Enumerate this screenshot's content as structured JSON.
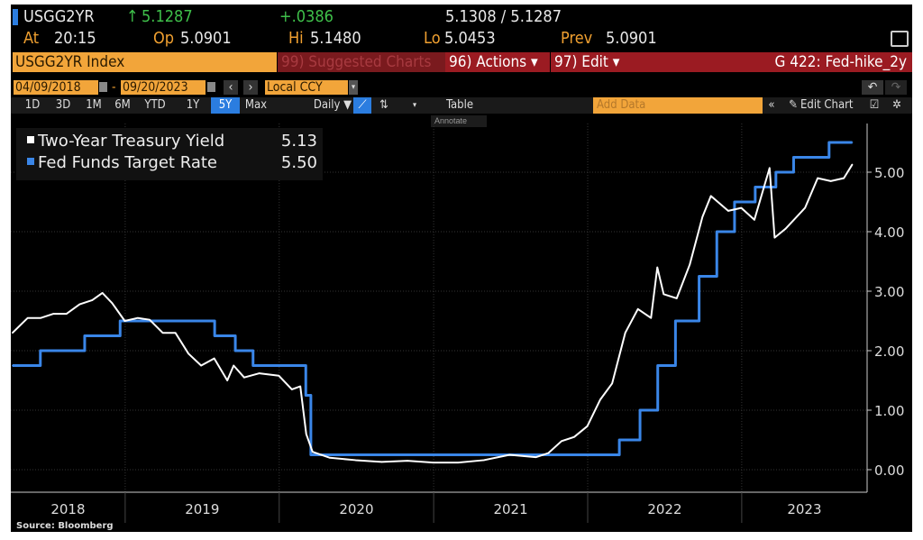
{
  "header": {
    "ticker": "USGG2YR",
    "arrow": "↑",
    "last": "5.1287",
    "change": "+.0386",
    "bid_ask": "5.1308 / 5.1287",
    "at_label": "At",
    "at_value": "20:15",
    "op_label": "Op",
    "op_value": "5.0901",
    "hi_label": "Hi",
    "hi_value": "5.1480",
    "lo_label": "Lo",
    "lo_value": "5.0453",
    "prev_label": "Prev",
    "prev_value": "5.0901"
  },
  "toolbar": {
    "security": "USGG2YR Index",
    "suggested": "99) Suggested Charts",
    "actions": "96) Actions ▾",
    "edit": "97) Edit ▾",
    "chart_name": "G 422: Fed-hike_2y",
    "start_date": "04/09/2018",
    "end_date": "09/20/2023",
    "currency": "Local CCY",
    "periods": [
      "1D",
      "3D",
      "1M",
      "6M",
      "YTD",
      "1Y",
      "5Y",
      "Max"
    ],
    "active_period": "5Y",
    "frequency": "Daily ▼",
    "table": "Table",
    "add_data_placeholder": "Add Data",
    "edit_chart": "Edit Chart",
    "annotate": "Annotate",
    "collapse": "«"
  },
  "source": "Source: Bloomberg",
  "colors": {
    "yield": "#ffffff",
    "fed": "#3a86e8",
    "orange": "#f2a53a",
    "red": "#9b1b22",
    "active": "#2b7de0"
  },
  "chart_data": {
    "type": "line",
    "xlabel": "",
    "ylabel": "",
    "ylim": [
      -0.3,
      5.7
    ],
    "xlim": [
      "2018-04-09",
      "2023-10-20"
    ],
    "y_ticks": [
      "0.00",
      "1.00",
      "2.00",
      "3.00",
      "4.00",
      "5.00"
    ],
    "x_ticks": [
      "2018",
      "2019",
      "2020",
      "2021",
      "2022",
      "2023"
    ],
    "grid": true,
    "legend_position": "top-left",
    "legend": [
      {
        "name": "Two-Year Treasury Yield",
        "last": "5.13"
      },
      {
        "name": "Fed Funds Target Rate",
        "last": "5.50"
      }
    ],
    "series": [
      {
        "name": "Two-Year Treasury Yield",
        "style": "line",
        "points": [
          [
            "2018-04-09",
            2.3
          ],
          [
            "2018-05-15",
            2.55
          ],
          [
            "2018-06-15",
            2.55
          ],
          [
            "2018-07-15",
            2.62
          ],
          [
            "2018-08-15",
            2.62
          ],
          [
            "2018-09-15",
            2.78
          ],
          [
            "2018-10-15",
            2.85
          ],
          [
            "2018-11-08",
            2.97
          ],
          [
            "2018-12-01",
            2.8
          ],
          [
            "2018-12-31",
            2.5
          ],
          [
            "2019-01-31",
            2.55
          ],
          [
            "2019-02-28",
            2.52
          ],
          [
            "2019-03-31",
            2.3
          ],
          [
            "2019-04-30",
            2.3
          ],
          [
            "2019-05-31",
            1.95
          ],
          [
            "2019-06-30",
            1.75
          ],
          [
            "2019-07-31",
            1.87
          ],
          [
            "2019-08-31",
            1.5
          ],
          [
            "2019-09-15",
            1.75
          ],
          [
            "2019-10-10",
            1.55
          ],
          [
            "2019-11-15",
            1.62
          ],
          [
            "2019-12-31",
            1.58
          ],
          [
            "2020-01-31",
            1.35
          ],
          [
            "2020-02-20",
            1.4
          ],
          [
            "2020-03-05",
            0.6
          ],
          [
            "2020-03-20",
            0.3
          ],
          [
            "2020-04-30",
            0.2
          ],
          [
            "2020-06-30",
            0.16
          ],
          [
            "2020-08-31",
            0.13
          ],
          [
            "2020-10-31",
            0.15
          ],
          [
            "2020-12-31",
            0.12
          ],
          [
            "2021-02-28",
            0.12
          ],
          [
            "2021-04-30",
            0.16
          ],
          [
            "2021-06-30",
            0.25
          ],
          [
            "2021-08-31",
            0.21
          ],
          [
            "2021-09-30",
            0.28
          ],
          [
            "2021-10-31",
            0.48
          ],
          [
            "2021-11-30",
            0.55
          ],
          [
            "2021-12-31",
            0.73
          ],
          [
            "2022-01-31",
            1.18
          ],
          [
            "2022-02-28",
            1.45
          ],
          [
            "2022-03-31",
            2.3
          ],
          [
            "2022-04-30",
            2.7
          ],
          [
            "2022-05-31",
            2.55
          ],
          [
            "2022-06-15",
            3.4
          ],
          [
            "2022-06-30",
            2.95
          ],
          [
            "2022-07-31",
            2.88
          ],
          [
            "2022-08-31",
            3.45
          ],
          [
            "2022-09-30",
            4.25
          ],
          [
            "2022-10-20",
            4.6
          ],
          [
            "2022-11-30",
            4.35
          ],
          [
            "2022-12-31",
            4.4
          ],
          [
            "2023-01-31",
            4.2
          ],
          [
            "2023-03-08",
            5.07
          ],
          [
            "2023-03-20",
            3.9
          ],
          [
            "2023-04-15",
            4.05
          ],
          [
            "2023-05-31",
            4.4
          ],
          [
            "2023-06-30",
            4.9
          ],
          [
            "2023-07-31",
            4.85
          ],
          [
            "2023-08-31",
            4.9
          ],
          [
            "2023-09-20",
            5.13
          ]
        ]
      },
      {
        "name": "Fed Funds Target Rate",
        "style": "step",
        "points": [
          [
            "2018-04-09",
            1.75
          ],
          [
            "2018-06-14",
            2.0
          ],
          [
            "2018-09-27",
            2.25
          ],
          [
            "2018-12-20",
            2.5
          ],
          [
            "2019-08-01",
            2.25
          ],
          [
            "2019-09-19",
            2.0
          ],
          [
            "2019-10-31",
            1.75
          ],
          [
            "2020-03-04",
            1.25
          ],
          [
            "2020-03-16",
            0.25
          ],
          [
            "2022-03-17",
            0.5
          ],
          [
            "2022-05-05",
            1.0
          ],
          [
            "2022-06-16",
            1.75
          ],
          [
            "2022-07-28",
            2.5
          ],
          [
            "2022-09-22",
            3.25
          ],
          [
            "2022-11-03",
            4.0
          ],
          [
            "2022-12-15",
            4.5
          ],
          [
            "2023-02-02",
            4.75
          ],
          [
            "2023-03-23",
            5.0
          ],
          [
            "2023-05-04",
            5.25
          ],
          [
            "2023-07-27",
            5.5
          ],
          [
            "2023-09-20",
            5.5
          ]
        ]
      }
    ]
  }
}
